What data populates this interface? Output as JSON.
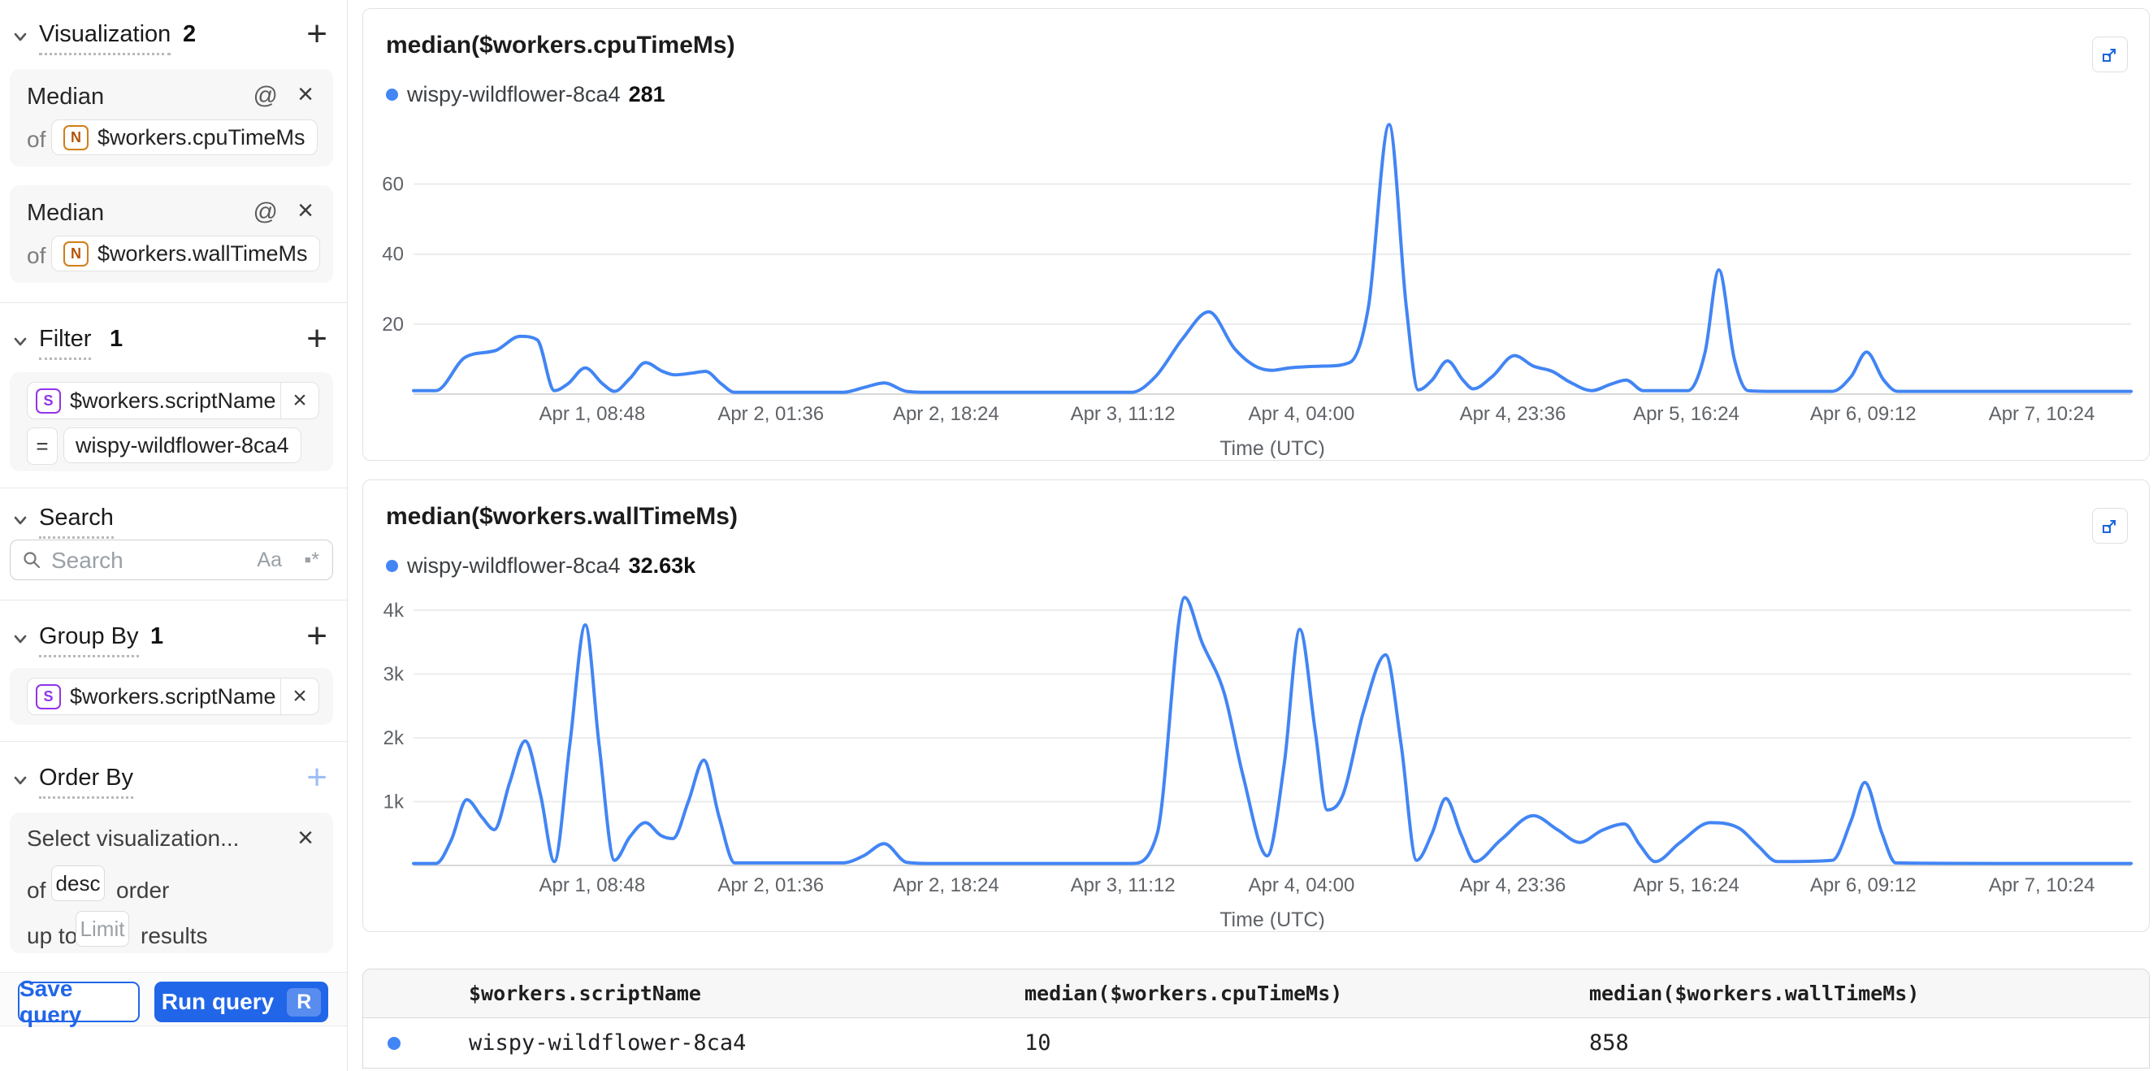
{
  "colors": {
    "accent": "#2166e8",
    "line_blue": "#4285f4",
    "expand_blue": "#1a66d9",
    "axis_text": "#5f6368",
    "grid": "#ececec",
    "baseline": "#d8d8d8"
  },
  "sidebar": {
    "visualization": {
      "label": "Visualization",
      "count": "2",
      "items": [
        {
          "title": "Median",
          "of_label": "of",
          "badge": "N",
          "field": "$workers.cpuTimeMs"
        },
        {
          "title": "Median",
          "of_label": "of",
          "badge": "N",
          "field": "$workers.wallTimeMs"
        }
      ]
    },
    "filter": {
      "label": "Filter",
      "count": "1",
      "badge": "S",
      "field": "$workers.scriptName",
      "operator": "=",
      "value": "wispy-wildflower-8ca4"
    },
    "search": {
      "label": "Search",
      "placeholder": "Search",
      "case_icon": "Aa",
      "regex_icon": "▪*"
    },
    "group_by": {
      "label": "Group By",
      "count": "1",
      "badge": "S",
      "field": "$workers.scriptName"
    },
    "order_by": {
      "label": "Order By",
      "select_placeholder": "Select visualization...",
      "of_label": "of",
      "direction": "desc",
      "order_label": "order",
      "up_to_label": "up to",
      "limit_placeholder": "Limit",
      "results_label": "results"
    },
    "footer": {
      "save_label": "Save query",
      "run_label": "Run query",
      "run_kbd": "R"
    }
  },
  "chart_data": [
    {
      "type": "line",
      "title": "median($workers.cpuTimeMs)",
      "legend": {
        "name": "wispy-wildflower-8ca4",
        "value": "281"
      },
      "xlabel": "Time (UTC)",
      "ymax": 78,
      "yticks": [
        {
          "v": 20,
          "label": "20"
        },
        {
          "v": 40,
          "label": "40"
        },
        {
          "v": 60,
          "label": "60"
        }
      ],
      "xticks": [
        {
          "f": 0.104,
          "label": "Apr 1, 08:48"
        },
        {
          "f": 0.208,
          "label": "Apr 2, 01:36"
        },
        {
          "f": 0.31,
          "label": "Apr 2, 18:24"
        },
        {
          "f": 0.413,
          "label": "Apr 3, 11:12"
        },
        {
          "f": 0.517,
          "label": "Apr 4, 04:00"
        },
        {
          "f": 0.64,
          "label": "Apr 4, 23:36"
        },
        {
          "f": 0.741,
          "label": "Apr 5, 16:24"
        },
        {
          "f": 0.844,
          "label": "Apr 6, 09:12"
        },
        {
          "f": 0.948,
          "label": "Apr 7, 10:24"
        }
      ],
      "series": [
        [
          0,
          1
        ],
        [
          0.013,
          1
        ],
        [
          0.03,
          10.5
        ],
        [
          0.048,
          12.5
        ],
        [
          0.062,
          16.5
        ],
        [
          0.072,
          15.5
        ],
        [
          0.082,
          1
        ],
        [
          0.09,
          3
        ],
        [
          0.1,
          7.5
        ],
        [
          0.11,
          3
        ],
        [
          0.117,
          0.8
        ],
        [
          0.126,
          4.5
        ],
        [
          0.135,
          9
        ],
        [
          0.145,
          6.5
        ],
        [
          0.152,
          5.5
        ],
        [
          0.162,
          6
        ],
        [
          0.17,
          6.5
        ],
        [
          0.179,
          3
        ],
        [
          0.187,
          0.5
        ],
        [
          0.25,
          0.5
        ],
        [
          0.263,
          2
        ],
        [
          0.274,
          3.2
        ],
        [
          0.287,
          0.8
        ],
        [
          0.3,
          0.5
        ],
        [
          0.418,
          0.5
        ],
        [
          0.432,
          5
        ],
        [
          0.448,
          16
        ],
        [
          0.463,
          23.5
        ],
        [
          0.478,
          13
        ],
        [
          0.49,
          8
        ],
        [
          0.5,
          6.8
        ],
        [
          0.51,
          7.5
        ],
        [
          0.53,
          8
        ],
        [
          0.545,
          9
        ],
        [
          0.556,
          25
        ],
        [
          0.568,
          77
        ],
        [
          0.578,
          25
        ],
        [
          0.585,
          1.2
        ],
        [
          0.593,
          4
        ],
        [
          0.602,
          9.5
        ],
        [
          0.611,
          4
        ],
        [
          0.617,
          1.5
        ],
        [
          0.628,
          5
        ],
        [
          0.641,
          11
        ],
        [
          0.652,
          8
        ],
        [
          0.663,
          6.5
        ],
        [
          0.673,
          3.5
        ],
        [
          0.686,
          1
        ],
        [
          0.697,
          2.8
        ],
        [
          0.706,
          4
        ],
        [
          0.716,
          1
        ],
        [
          0.742,
          1
        ],
        [
          0.752,
          12
        ],
        [
          0.76,
          35.5
        ],
        [
          0.769,
          10
        ],
        [
          0.777,
          1
        ],
        [
          0.79,
          0.8
        ],
        [
          0.826,
          0.8
        ],
        [
          0.837,
          5
        ],
        [
          0.846,
          12
        ],
        [
          0.856,
          4
        ],
        [
          0.864,
          0.8
        ],
        [
          0.92,
          0.8
        ],
        [
          1,
          0.8
        ]
      ]
    },
    {
      "type": "line",
      "title": "median($workers.wallTimeMs)",
      "legend": {
        "name": "wispy-wildflower-8ca4",
        "value": "32.63k"
      },
      "xlabel": "Time (UTC)",
      "ymax": 4280,
      "yticks": [
        {
          "v": 1000,
          "label": "1k"
        },
        {
          "v": 2000,
          "label": "2k"
        },
        {
          "v": 3000,
          "label": "3k"
        },
        {
          "v": 4000,
          "label": "4k"
        }
      ],
      "xticks": [
        {
          "f": 0.104,
          "label": "Apr 1, 08:48"
        },
        {
          "f": 0.208,
          "label": "Apr 2, 01:36"
        },
        {
          "f": 0.31,
          "label": "Apr 2, 18:24"
        },
        {
          "f": 0.413,
          "label": "Apr 3, 11:12"
        },
        {
          "f": 0.517,
          "label": "Apr 4, 04:00"
        },
        {
          "f": 0.64,
          "label": "Apr 4, 23:36"
        },
        {
          "f": 0.741,
          "label": "Apr 5, 16:24"
        },
        {
          "f": 0.844,
          "label": "Apr 6, 09:12"
        },
        {
          "f": 0.948,
          "label": "Apr 7, 10:24"
        }
      ],
      "series": [
        [
          0,
          30
        ],
        [
          0.013,
          30
        ],
        [
          0.022,
          400
        ],
        [
          0.031,
          1030
        ],
        [
          0.04,
          750
        ],
        [
          0.047,
          560
        ],
        [
          0.056,
          1300
        ],
        [
          0.065,
          1950
        ],
        [
          0.074,
          1100
        ],
        [
          0.082,
          60
        ],
        [
          0.091,
          1900
        ],
        [
          0.1,
          3770
        ],
        [
          0.108,
          1900
        ],
        [
          0.117,
          80
        ],
        [
          0.126,
          450
        ],
        [
          0.135,
          670
        ],
        [
          0.144,
          470
        ],
        [
          0.151,
          420
        ],
        [
          0.16,
          1000
        ],
        [
          0.169,
          1650
        ],
        [
          0.178,
          750
        ],
        [
          0.187,
          40
        ],
        [
          0.25,
          40
        ],
        [
          0.262,
          150
        ],
        [
          0.274,
          340
        ],
        [
          0.287,
          50
        ],
        [
          0.3,
          30
        ],
        [
          0.418,
          30
        ],
        [
          0.433,
          500
        ],
        [
          0.449,
          4200
        ],
        [
          0.459,
          3500
        ],
        [
          0.472,
          2700
        ],
        [
          0.483,
          1400
        ],
        [
          0.497,
          150
        ],
        [
          0.507,
          1600
        ],
        [
          0.516,
          3700
        ],
        [
          0.525,
          2100
        ],
        [
          0.532,
          870
        ],
        [
          0.541,
          1100
        ],
        [
          0.553,
          2400
        ],
        [
          0.566,
          3300
        ],
        [
          0.575,
          1900
        ],
        [
          0.584,
          80
        ],
        [
          0.593,
          500
        ],
        [
          0.601,
          1050
        ],
        [
          0.61,
          480
        ],
        [
          0.618,
          60
        ],
        [
          0.633,
          400
        ],
        [
          0.652,
          780
        ],
        [
          0.666,
          560
        ],
        [
          0.679,
          360
        ],
        [
          0.692,
          550
        ],
        [
          0.705,
          650
        ],
        [
          0.714,
          320
        ],
        [
          0.723,
          60
        ],
        [
          0.737,
          350
        ],
        [
          0.755,
          670
        ],
        [
          0.772,
          580
        ],
        [
          0.783,
          300
        ],
        [
          0.794,
          60
        ],
        [
          0.826,
          80
        ],
        [
          0.837,
          700
        ],
        [
          0.845,
          1300
        ],
        [
          0.855,
          500
        ],
        [
          0.863,
          40
        ],
        [
          0.92,
          30
        ],
        [
          1,
          30
        ]
      ]
    }
  ],
  "table": {
    "headers": [
      "$workers.scriptName",
      "median($workers.cpuTimeMs)",
      "median($workers.wallTimeMs)"
    ],
    "row": {
      "dot_color": "#4285f4",
      "script": "wispy-wildflower-8ca4",
      "cpu": "10",
      "wall": "858"
    }
  }
}
